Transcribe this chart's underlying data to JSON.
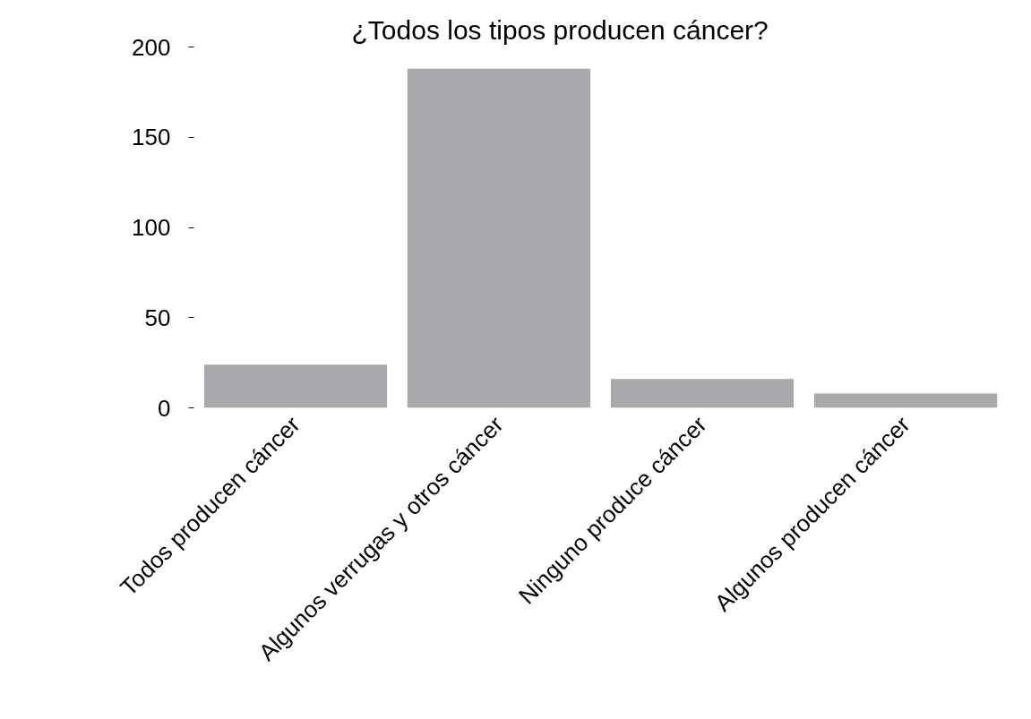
{
  "chart_data": {
    "type": "bar",
    "title": "¿Todos los tipos producen cáncer?",
    "categories": [
      "Todos producen cáncer",
      "Algunos verrugas y otros cáncer",
      "Ninguno produce cáncer",
      "Algunos producen cáncer"
    ],
    "values": [
      24,
      188,
      16,
      8
    ],
    "color": "#a7a9ad",
    "ylim": [
      0,
      200
    ],
    "yticks": [
      0,
      50,
      100,
      150,
      200
    ]
  }
}
